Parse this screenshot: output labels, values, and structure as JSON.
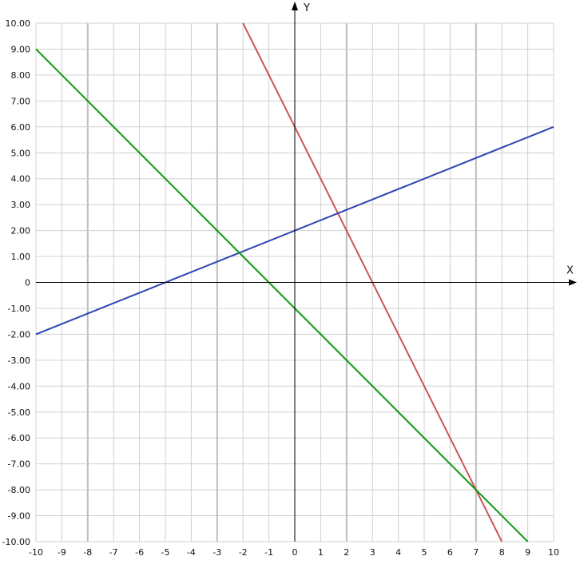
{
  "chart_data": {
    "type": "line",
    "title": "",
    "x_axis": {
      "label": "X",
      "range": [
        -10,
        10
      ],
      "tick_labels": [
        "-10",
        "-9",
        "-8",
        "-7",
        "-6",
        "-5",
        "-4",
        "-3",
        "-2",
        "-1",
        "0",
        "1",
        "2",
        "3",
        "4",
        "5",
        "6",
        "7",
        "8",
        "9",
        "10"
      ]
    },
    "y_axis": {
      "label": "Y",
      "range": [
        -10,
        10
      ],
      "tick_labels": [
        "-10.00",
        "-9.00",
        "-8.00",
        "-7.00",
        "-6.00",
        "-5.00",
        "-4.00",
        "-3.00",
        "-2.00",
        "-1.00",
        "0",
        "1.00",
        "2.00",
        "3.00",
        "4.00",
        "5.00",
        "6.00",
        "7.00",
        "8.00",
        "9.00",
        "10.00"
      ]
    },
    "grid": true,
    "major_grid_x": [
      -8,
      -3,
      2,
      7
    ],
    "series": [
      {
        "color": "#cc5555",
        "x": [
          -2,
          8
        ],
        "y": [
          10,
          -10
        ]
      },
      {
        "color": "#2e44b4",
        "x": [
          -10,
          10
        ],
        "y": [
          -2,
          6
        ]
      },
      {
        "color": "#0f9a0f",
        "x": [
          -10,
          9
        ],
        "y": [
          9,
          -10
        ]
      }
    ],
    "colors": {
      "grid": "#d0d0d0",
      "major_grid": "#bdbdbd",
      "axis": "#000000"
    }
  }
}
